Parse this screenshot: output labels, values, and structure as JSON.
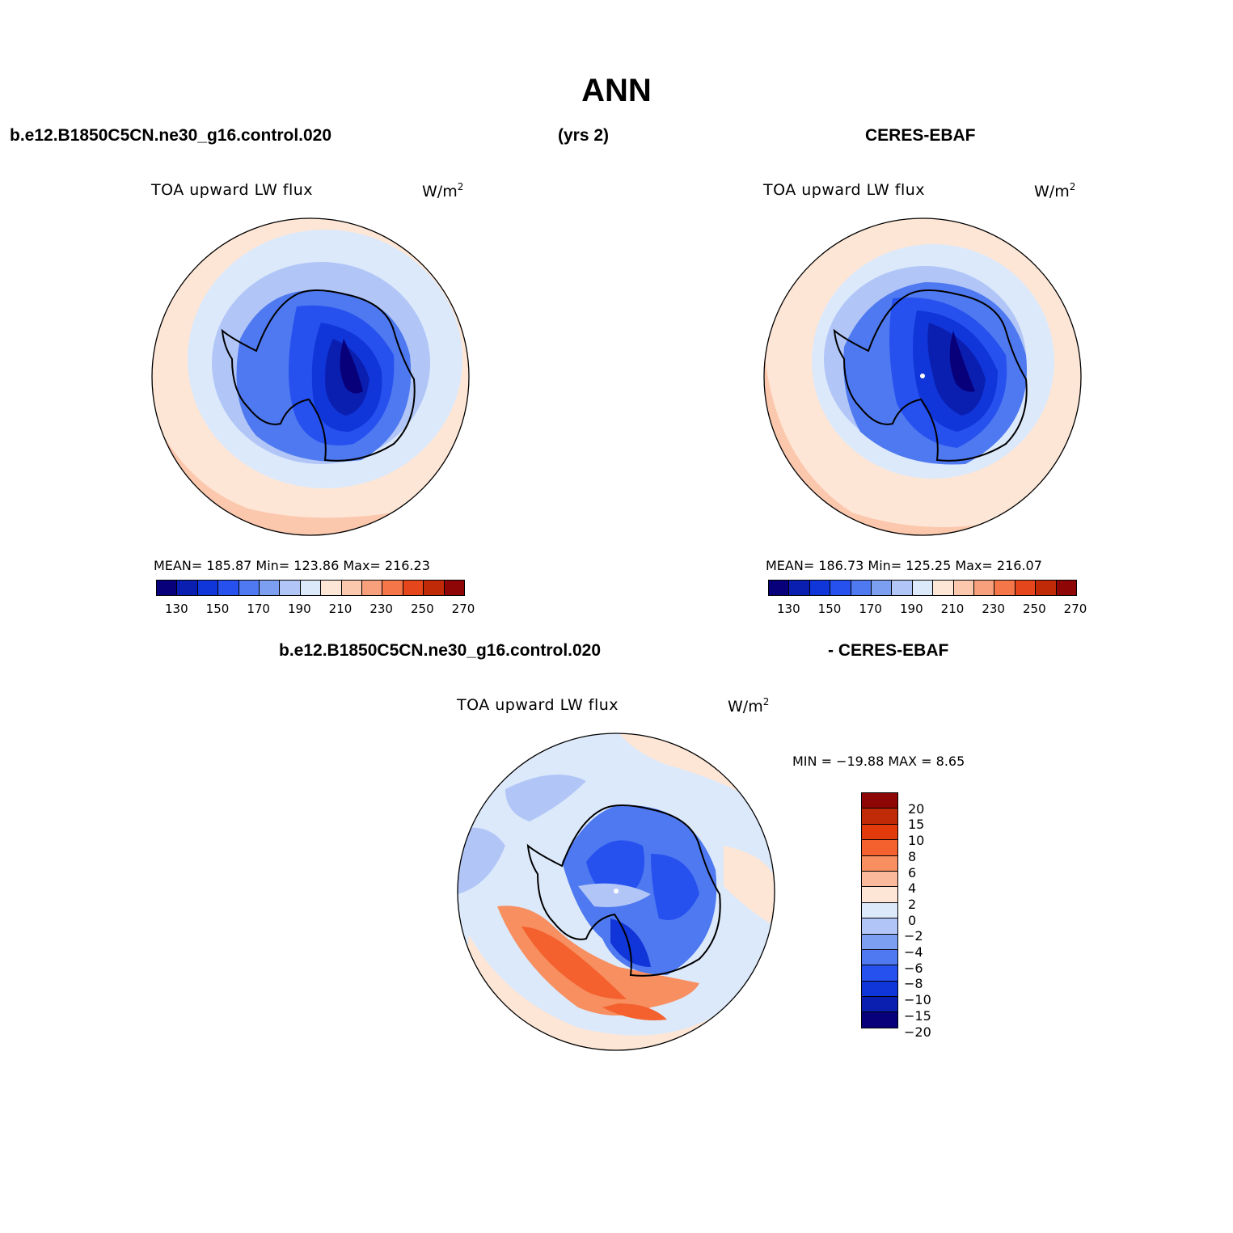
{
  "figure": {
    "title": "ANN",
    "left_header": "b.e12.B1850C5CN.ne30_g16.control.020",
    "center_header": "(yrs 2)",
    "right_header": "CERES-EBAF",
    "diff_header_left": "b.e12.B1850C5CN.ne30_g16.control.020",
    "diff_header_right": "- CERES-EBAF"
  },
  "panels": [
    {
      "id": "model",
      "title": "TOA upward LW flux",
      "units": "W/m",
      "units_sup": "2",
      "stats": "MEAN= 185.87   Min= 123.86   Max= 216.23"
    },
    {
      "id": "obs",
      "title": "TOA upward LW flux",
      "units": "W/m",
      "units_sup": "2",
      "stats": "MEAN= 186.73   Min= 125.25   Max= 216.07"
    },
    {
      "id": "diff",
      "title": "TOA upward LW flux",
      "units": "W/m",
      "units_sup": "2",
      "stats": "MIN = −19.88  MAX =    8.65"
    }
  ],
  "colorbar": {
    "colors": [
      "#08007a",
      "#0a1fb0",
      "#1035d8",
      "#2651ef",
      "#4f79f0",
      "#7d9ff2",
      "#b1c6f7",
      "#dce9fb",
      "#fde6d6",
      "#fbc7ad",
      "#f8a07c",
      "#f47649",
      "#e5461b",
      "#c12a07",
      "#8e0605"
    ],
    "labels": [
      "130",
      "150",
      "170",
      "190",
      "210",
      "230",
      "250",
      "270"
    ]
  },
  "diff_colorbar": {
    "colors": [
      "#8e0605",
      "#c12a07",
      "#e33a0c",
      "#f4612e",
      "#f78f60",
      "#fbb99c",
      "#fde6d6",
      "#dce9fb",
      "#b1c6f7",
      "#7d9ff2",
      "#4f79f0",
      "#2651ef",
      "#1035d8",
      "#0a1fb0",
      "#08007a"
    ],
    "labels": [
      "20",
      "15",
      "10",
      "8",
      "6",
      "4",
      "2",
      "0",
      "−2",
      "−4",
      "−6",
      "−8",
      "−10",
      "−15",
      "−20"
    ]
  },
  "map_colors": {
    "land_outline": "#000000",
    "ring_outer": "#fbc7ad",
    "ring_mid": "#fde6d6",
    "ocean_near": "#dce9fb",
    "ice_edge": "#b1c6f7",
    "coast_blue": "#7d9ff2",
    "interior1": "#4f79f0",
    "interior2": "#2651ef",
    "interior3": "#1035d8",
    "interior4": "#0a1fb0",
    "interior5": "#08007a"
  }
}
